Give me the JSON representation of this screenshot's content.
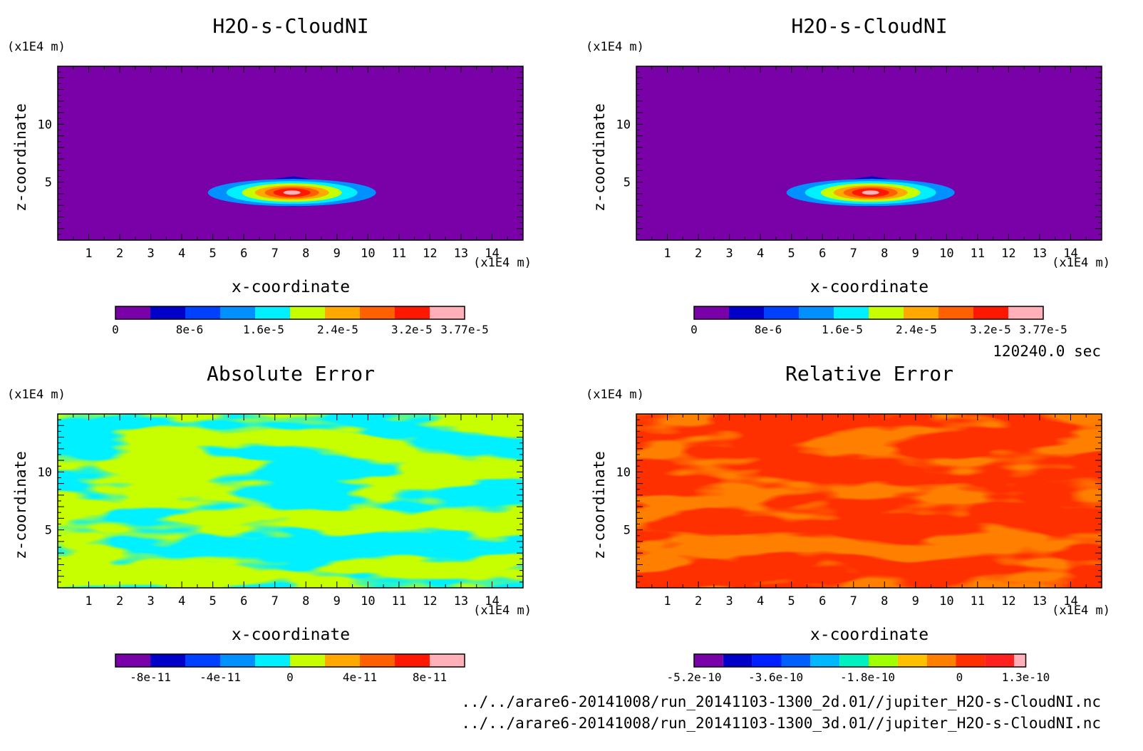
{
  "colors": {
    "level_scale_10": [
      "#7a00a8",
      "#0000c8",
      "#0040ff",
      "#0090ff",
      "#00f0ff",
      "#c8ff00",
      "#ffa800",
      "#ff6000",
      "#ff1800",
      "#ffb0b8"
    ],
    "level_scale_rel": [
      "#7a00a8",
      "#0000c8",
      "#0020ff",
      "#0060ff",
      "#00b8ff",
      "#00f0c0",
      "#a0ff00",
      "#ffc000",
      "#ff8000",
      "#ff3000",
      "#ff2020",
      "#ffb0b8"
    ]
  },
  "time_label": "120240.0 sec",
  "file_lines": [
    "../../arare6-20141008/run_20141103-1300_2d.01//jupiter_H2O-s-CloudNI.nc",
    "../../arare6-20141008/run_20141103-1300_3d.01//jupiter_H2O-s-CloudNI.nc"
  ],
  "chart_data": [
    {
      "type": "heatmap",
      "title": "H2O-s-CloudNI",
      "xlabel": "x-coordinate",
      "ylabel": "z-coordinate",
      "x_unit": "(x1E4 m)",
      "y_unit": "(x1E4 m)",
      "xlim": [
        0,
        15
      ],
      "ylim": [
        0,
        15
      ],
      "x_ticks": [
        "1",
        "2",
        "3",
        "4",
        "5",
        "6",
        "7",
        "8",
        "9",
        "10",
        "11",
        "12",
        "13",
        "14"
      ],
      "y_ticks": [
        "5",
        "10"
      ],
      "field": "cloud",
      "colorbar": {
        "ticks": [
          "0",
          "8e-6",
          "1.6e-5",
          "2.4e-5",
          "3.2e-5",
          "3.77e-5"
        ],
        "range": [
          0,
          3.77e-05
        ]
      }
    },
    {
      "type": "heatmap",
      "title": "H2O-s-CloudNI",
      "xlabel": "x-coordinate",
      "ylabel": "z-coordinate",
      "x_unit": "(x1E4 m)",
      "y_unit": "(x1E4 m)",
      "xlim": [
        0,
        15
      ],
      "ylim": [
        0,
        15
      ],
      "x_ticks": [
        "1",
        "2",
        "3",
        "4",
        "5",
        "6",
        "7",
        "8",
        "9",
        "10",
        "11",
        "12",
        "13",
        "14"
      ],
      "y_ticks": [
        "5",
        "10"
      ],
      "field": "cloud",
      "colorbar": {
        "ticks": [
          "0",
          "8e-6",
          "1.6e-5",
          "2.4e-5",
          "3.2e-5",
          "3.77e-5"
        ],
        "range": [
          0,
          3.77e-05
        ]
      }
    },
    {
      "type": "heatmap",
      "title": "Absolute Error",
      "xlabel": "x-coordinate",
      "ylabel": "z-coordinate",
      "x_unit": "(x1E4 m)",
      "y_unit": "(x1E4 m)",
      "xlim": [
        0,
        15
      ],
      "ylim": [
        0,
        15
      ],
      "x_ticks": [
        "1",
        "2",
        "3",
        "4",
        "5",
        "6",
        "7",
        "8",
        "9",
        "10",
        "11",
        "12",
        "13",
        "14"
      ],
      "y_ticks": [
        "5",
        "10"
      ],
      "field": "noise",
      "noise_colors": [
        "#c8ff00",
        "#00f0ff"
      ],
      "colorbar": {
        "ticks": [
          "-8e-11",
          "-4e-11",
          "0",
          "4e-11",
          "8e-11"
        ],
        "range": [
          -1e-10,
          1e-10
        ]
      }
    },
    {
      "type": "heatmap",
      "title": "Relative Error",
      "xlabel": "x-coordinate",
      "ylabel": "z-coordinate",
      "x_unit": "(x1E4 m)",
      "y_unit": "(x1E4 m)",
      "xlim": [
        0,
        15
      ],
      "ylim": [
        0,
        15
      ],
      "x_ticks": [
        "1",
        "2",
        "3",
        "4",
        "5",
        "6",
        "7",
        "8",
        "9",
        "10",
        "11",
        "12",
        "13",
        "14"
      ],
      "y_ticks": [
        "5",
        "10"
      ],
      "field": "noise",
      "noise_colors": [
        "#ff3000",
        "#ff8000"
      ],
      "colorbar": {
        "ticks": [
          "-5.2e-10",
          "-3.6e-10",
          "-1.8e-10",
          "0",
          "1.3e-10"
        ],
        "range": [
          -5.2e-10,
          1.3e-10
        ]
      }
    }
  ]
}
